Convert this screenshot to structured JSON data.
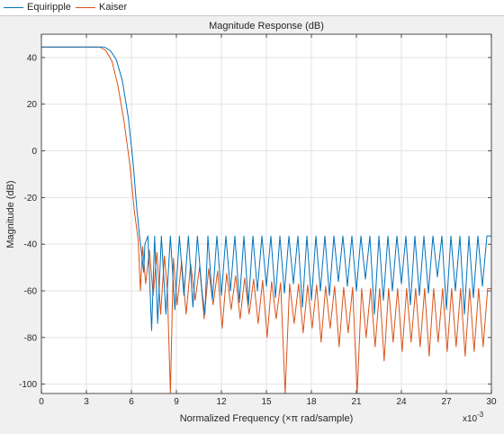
{
  "legend": {
    "items": [
      {
        "label": "Equiripple",
        "color": "#0072bd"
      },
      {
        "label": "Kaiser",
        "color": "#d95319"
      }
    ]
  },
  "colors": {
    "background": "#f0f0f0",
    "axes": "#ffffff",
    "grid": "#dfdfdf",
    "axis_line": "#262626"
  },
  "chart_data": {
    "type": "line",
    "title": "Magnitude Response (dB)",
    "xlabel": "Normalized Frequency (×π rad/sample)",
    "ylabel": "Magnitude (dB)",
    "x_exponent_label": "x10",
    "x_exponent_power": "-3",
    "x_multiplier": 0.001,
    "xlim": [
      0,
      30
    ],
    "ylim": [
      -104,
      50
    ],
    "xticks": [
      0,
      3,
      6,
      9,
      12,
      15,
      18,
      21,
      24,
      27,
      30
    ],
    "yticks": [
      -100,
      -80,
      -60,
      -40,
      -20,
      0,
      20,
      40
    ],
    "grid": true,
    "legend_position": "top-left",
    "series": [
      {
        "name": "Equiripple",
        "color": "#0072bd",
        "passband_db": 44.5,
        "passband_edge": 4.2,
        "stopband_start": 6.5,
        "stopband_peak_db": -36.5,
        "x": [
          0,
          3,
          4.2,
          4.6,
          5.0,
          5.4,
          5.8,
          6.1,
          6.35,
          6.55,
          6.7,
          6.82,
          6.9,
          7.1,
          7.35,
          7.55,
          7.75,
          8.0,
          8.3,
          8.6,
          8.9,
          9.2,
          9.5,
          9.8,
          10.1,
          10.4,
          10.7,
          10.9,
          11.1,
          11.4,
          11.7,
          12.0,
          12.3,
          12.6,
          12.9,
          13.2,
          13.5,
          13.8,
          14.1,
          14.4,
          14.7,
          15.0,
          15.3,
          15.6,
          15.9,
          16.2,
          16.5,
          16.8,
          17.1,
          17.4,
          17.7,
          18.0,
          18.3,
          18.6,
          18.9,
          19.2,
          19.5,
          19.8,
          20.1,
          20.4,
          20.7,
          21.0,
          21.3,
          21.6,
          21.9,
          22.2,
          22.5,
          22.8,
          23.1,
          23.4,
          23.7,
          24.0,
          24.3,
          24.6,
          24.9,
          25.2,
          25.5,
          25.8,
          26.1,
          26.4,
          26.7,
          27.0,
          27.3,
          27.6,
          27.9,
          28.2,
          28.5,
          28.8,
          29.1,
          29.4,
          29.7,
          30.0
        ],
        "y": [
          44.5,
          44.5,
          44.5,
          43.0,
          39.0,
          30.0,
          14.0,
          -4.0,
          -24.0,
          -37.0,
          -45.0,
          -52.0,
          -40.0,
          -36.5,
          -77.0,
          -36.5,
          -74.0,
          -36.5,
          -70.0,
          -36.5,
          -68.0,
          -36.5,
          -62.0,
          -36.5,
          -67.0,
          -36.5,
          -60.0,
          -70.0,
          -36.5,
          -64.0,
          -36.5,
          -62.0,
          -36.5,
          -60.0,
          -36.5,
          -65.0,
          -36.5,
          -66.0,
          -36.5,
          -60.0,
          -36.5,
          -58.0,
          -36.5,
          -63.0,
          -36.5,
          -61.0,
          -36.5,
          -57.0,
          -36.5,
          -67.0,
          -36.5,
          -64.0,
          -36.5,
          -60.0,
          -36.5,
          -62.0,
          -36.5,
          -56.0,
          -36.5,
          -58.0,
          -36.5,
          -60.0,
          -36.5,
          -55.0,
          -36.5,
          -70.0,
          -36.5,
          -64.0,
          -36.5,
          -60.0,
          -36.5,
          -57.0,
          -36.5,
          -66.0,
          -36.5,
          -62.0,
          -36.5,
          -61.0,
          -36.5,
          -54.0,
          -36.5,
          -68.0,
          -36.5,
          -60.0,
          -36.5,
          -70.0,
          -36.5,
          -63.0,
          -36.5,
          -58.0,
          -36.5,
          -36.5
        ]
      },
      {
        "name": "Kaiser",
        "color": "#d95319",
        "passband_db": 44.5,
        "passband_edge": 3.9,
        "stopband_start": 6.5,
        "stopband_peak_db": -40.0,
        "x": [
          0,
          3,
          3.9,
          4.3,
          4.7,
          5.1,
          5.5,
          5.9,
          6.2,
          6.45,
          6.6,
          6.75,
          6.95,
          7.2,
          7.45,
          7.7,
          7.95,
          8.2,
          8.4,
          8.6,
          8.8,
          9.05,
          9.35,
          9.65,
          9.95,
          10.25,
          10.55,
          10.85,
          11.15,
          11.45,
          11.75,
          12.05,
          12.35,
          12.65,
          12.95,
          13.25,
          13.55,
          13.85,
          14.15,
          14.45,
          14.75,
          15.05,
          15.35,
          15.65,
          15.95,
          16.25,
          16.55,
          16.85,
          17.15,
          17.45,
          17.75,
          18.05,
          18.35,
          18.65,
          18.95,
          19.25,
          19.55,
          19.85,
          20.15,
          20.45,
          20.75,
          21.05,
          21.35,
          21.65,
          21.95,
          22.25,
          22.55,
          22.85,
          23.15,
          23.45,
          23.75,
          24.05,
          24.35,
          24.65,
          24.95,
          25.25,
          25.55,
          25.85,
          26.15,
          26.45,
          26.75,
          27.05,
          27.35,
          27.65,
          27.95,
          28.25,
          28.55,
          28.85,
          29.15,
          29.45,
          29.75,
          30.0
        ],
        "y": [
          44.5,
          44.5,
          44.5,
          43.0,
          38.5,
          28.0,
          13.0,
          -6.0,
          -26.0,
          -38.0,
          -60.0,
          -41.0,
          -57.0,
          -42.5,
          -62.0,
          -43.5,
          -70.0,
          -45.0,
          -60.0,
          -104.0,
          -46.0,
          -66.0,
          -47.5,
          -70.0,
          -48.5,
          -64.0,
          -49.5,
          -72.0,
          -50.5,
          -66.0,
          -51.5,
          -76.0,
          -52.5,
          -68.0,
          -53.5,
          -72.0,
          -54.5,
          -70.0,
          -55.0,
          -74.0,
          -55.5,
          -80.0,
          -56.0,
          -72.0,
          -56.5,
          -104.0,
          -57.0,
          -74.0,
          -57.0,
          -78.0,
          -57.5,
          -76.0,
          -57.5,
          -82.0,
          -58.0,
          -76.0,
          -58.0,
          -84.0,
          -58.5,
          -78.0,
          -58.5,
          -104.0,
          -59.0,
          -80.0,
          -59.0,
          -84.0,
          -59.0,
          -90.0,
          -59.0,
          -82.0,
          -59.0,
          -86.0,
          -59.0,
          -82.0,
          -59.0,
          -84.0,
          -59.0,
          -88.0,
          -59.0,
          -82.0,
          -59.0,
          -86.0,
          -59.0,
          -84.0,
          -59.0,
          -88.0,
          -59.0,
          -86.0,
          -59.0,
          -84.0,
          -59.0,
          -59.0
        ]
      }
    ]
  }
}
